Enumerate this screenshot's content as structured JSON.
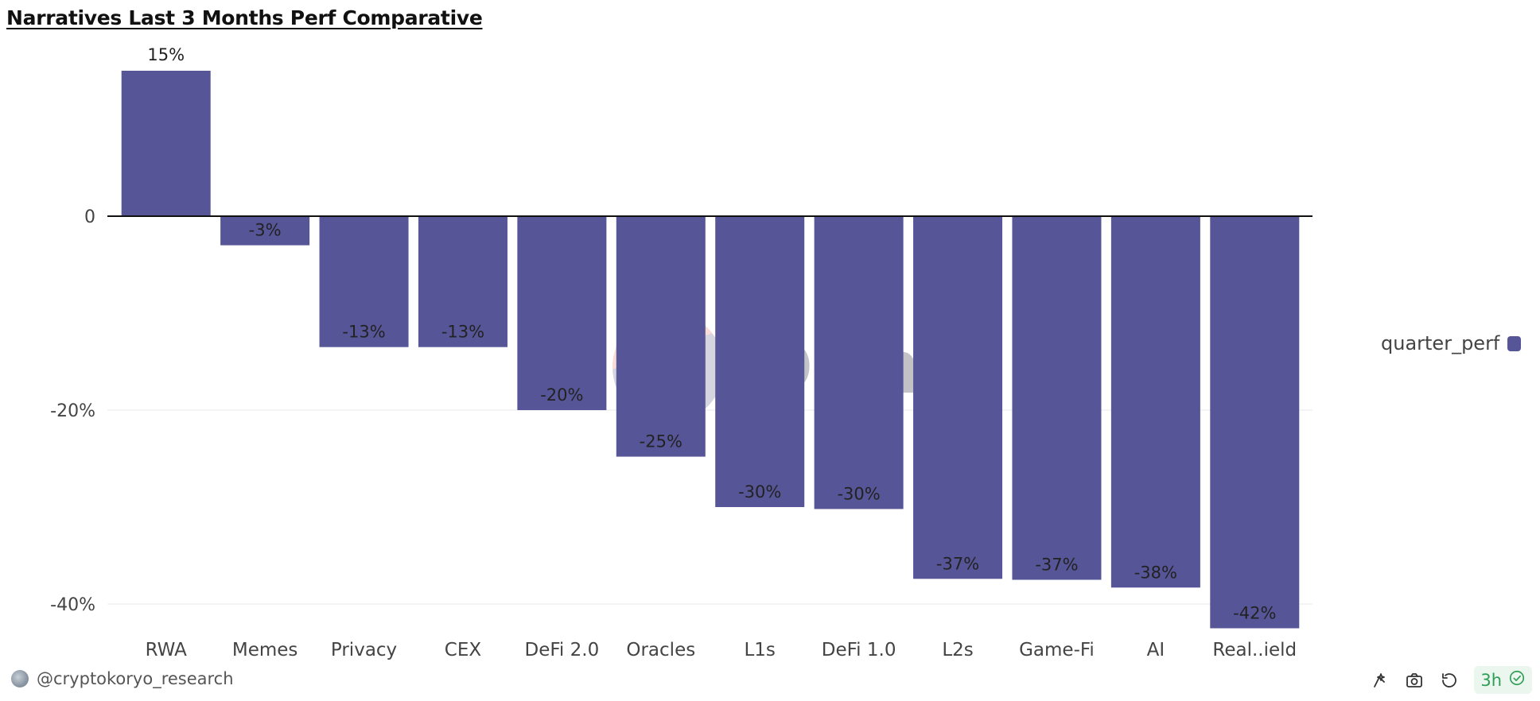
{
  "chart_data": {
    "type": "bar",
    "title": "Narratives Last 3 Months Perf Comparative",
    "categories": [
      "RWA",
      "Memes",
      "Privacy",
      "CEX",
      "DeFi 2.0",
      "Oracles",
      "L1s",
      "DeFi 1.0",
      "L2s",
      "Game-Fi",
      "AI",
      "Real..ield"
    ],
    "series": [
      {
        "name": "quarter_perf",
        "values": [
          15,
          -3,
          -13.5,
          -13.5,
          -20,
          -24.8,
          -30,
          -30.2,
          -37.4,
          -37.5,
          -38.3,
          -42.5
        ],
        "labels": [
          "15%",
          "-3%",
          "-13%",
          "-13%",
          "-20%",
          "-25%",
          "-30%",
          "-30%",
          "-37%",
          "-37%",
          "-38%",
          "-42%"
        ]
      }
    ],
    "y_ticks": [
      {
        "value": 0,
        "label": "0"
      },
      {
        "value": -20,
        "label": "-20%"
      },
      {
        "value": -40,
        "label": "-40%"
      }
    ],
    "ylim": [
      -44,
      17
    ],
    "grid": true,
    "legend_position": "right"
  },
  "colors": {
    "bar": "#565597",
    "zero_line": "#111111",
    "grid": "#e8e8ee",
    "freshness": "#2f9e55"
  },
  "legend": {
    "label": "quarter_perf"
  },
  "watermark": {
    "text": "Dune"
  },
  "footer": {
    "author": "@cryptokoryo_research",
    "freshness": "3h",
    "icons": [
      "sparkle-icon",
      "camera-icon",
      "refresh-icon",
      "check-circle-icon"
    ]
  }
}
